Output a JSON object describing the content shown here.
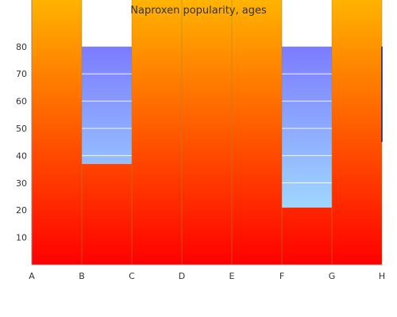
{
  "chart_data": {
    "type": "bar",
    "title": "Naproxen popularity, ages",
    "xlabel": "",
    "ylabel": "",
    "categories": [
      "A",
      "B",
      "C",
      "D",
      "E",
      "F",
      "G",
      "H"
    ],
    "y_ticks": [
      "10",
      "20",
      "30",
      "40",
      "50",
      "60",
      "70",
      "80"
    ],
    "ylim": [
      0,
      97
    ],
    "grid": false,
    "legend": "none",
    "series": [
      {
        "values": [
          100,
          37,
          100,
          100,
          100,
          21,
          100,
          45
        ],
        "color_top": "#ffb300",
        "color_bottom": "#ff0000"
      },
      {
        "values": [
          80,
          80,
          80,
          80,
          80,
          80,
          80,
          80
        ],
        "color_top": "#7b7bff",
        "color_bottom": "#a0d8ff"
      }
    ],
    "colors": {
      "axis": "#888888",
      "grid_in_bar": "#ffffff",
      "gap_background": "#ffffff"
    }
  }
}
